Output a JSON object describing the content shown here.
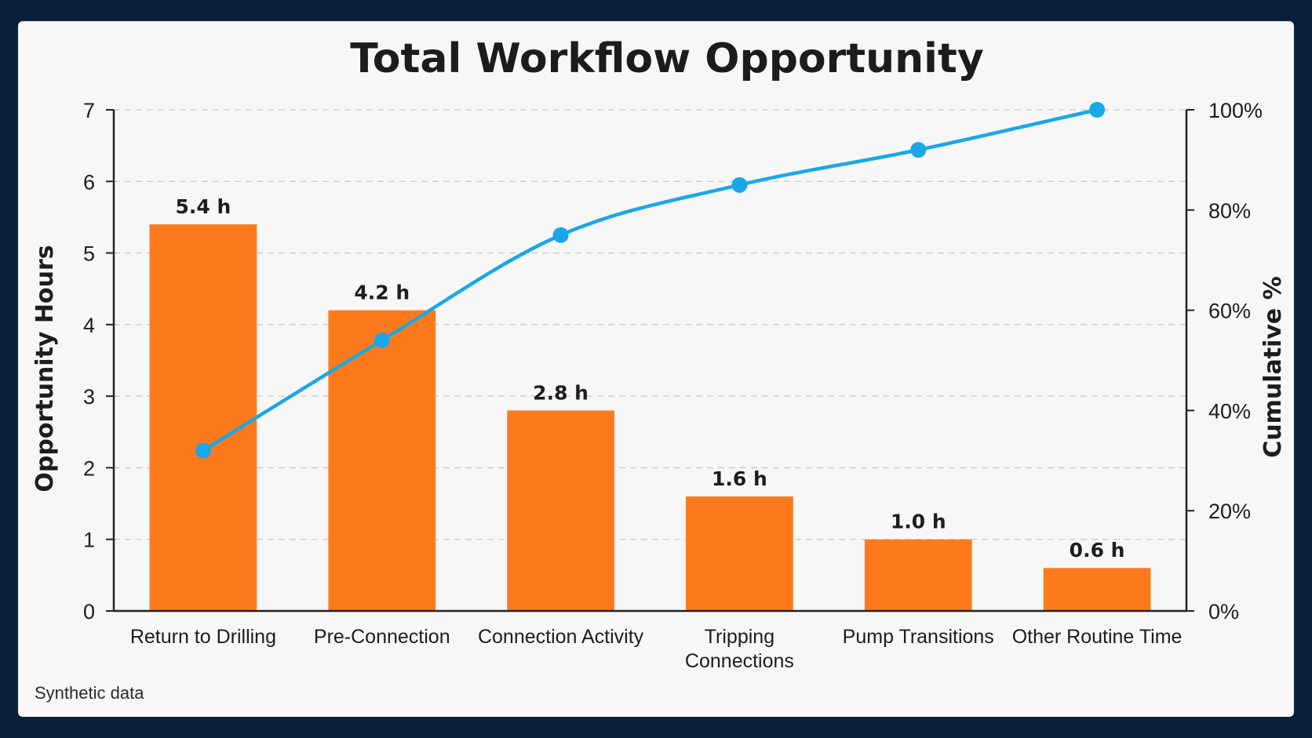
{
  "footnote": "Synthetic data",
  "colors": {
    "bar": "#fd7a1c",
    "line": "#1aa7e6",
    "background": "#0b1f3d",
    "panel": "#f7f7f7"
  },
  "chart_data": {
    "type": "bar",
    "title": "Total Workflow Opportunity",
    "xlabel": "",
    "ylabel": "Opportunity Hours",
    "y2label": "Cumulative %",
    "ylim": [
      0,
      7
    ],
    "y2lim": [
      0,
      100
    ],
    "yticks": [
      "0",
      "1",
      "2",
      "3",
      "4",
      "5",
      "6",
      "7"
    ],
    "y2ticks": [
      "0%",
      "20%",
      "40%",
      "60%",
      "80%",
      "100%"
    ],
    "grid": "horizontal dashed",
    "categories": [
      [
        "Return to Drilling"
      ],
      [
        "Pre-Connection"
      ],
      [
        "Connection Activity"
      ],
      [
        "Tripping",
        "Connections"
      ],
      [
        "Pump Transitions"
      ],
      [
        "Other Routine Time"
      ]
    ],
    "series": [
      {
        "type": "bar",
        "values": [
          5.4,
          4.2,
          2.8,
          1.6,
          1.0,
          0.6
        ],
        "labels": [
          "5.4 h",
          "4.2 h",
          "2.8 h",
          "1.6 h",
          "1.0 h",
          "0.6 h"
        ]
      },
      {
        "type": "line",
        "axis": "right",
        "values": [
          32,
          54,
          75,
          85,
          92,
          100
        ]
      }
    ]
  }
}
